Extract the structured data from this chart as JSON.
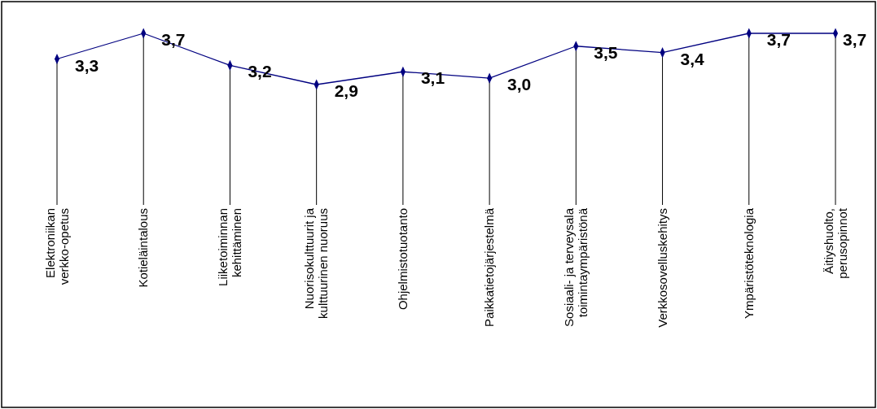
{
  "chart_data": {
    "type": "line",
    "categories": [
      "Elektroniikan verkko-opetus",
      "Kotieläintalous",
      "Liiketoiminnan kehittäminen",
      "Nuorisokulttuurit ja kulttuurinen nuoruus",
      "Ohjelmistotuotanto",
      "Paikkatietojärjestelmä",
      "Sosiaali- ja terveysala toimintaympäristönä",
      "Verkkosovelluskehitys",
      "Ympäristöteknologia",
      "Äitiyshuolto, perusopinnot"
    ],
    "series": [
      {
        "color": "#000080",
        "values": [
          3.3,
          3.7,
          3.2,
          2.9,
          3.1,
          3.0,
          3.5,
          3.4,
          3.7,
          3.7
        ],
        "value_labels": [
          "3,3",
          "3,7",
          "3,2",
          "2,9",
          "3,1",
          "3,0",
          "3,5",
          "3,4",
          "3,7",
          "3,7"
        ]
      }
    ],
    "marker": "diamond",
    "line_style": "solid",
    "grid": "x"
  }
}
